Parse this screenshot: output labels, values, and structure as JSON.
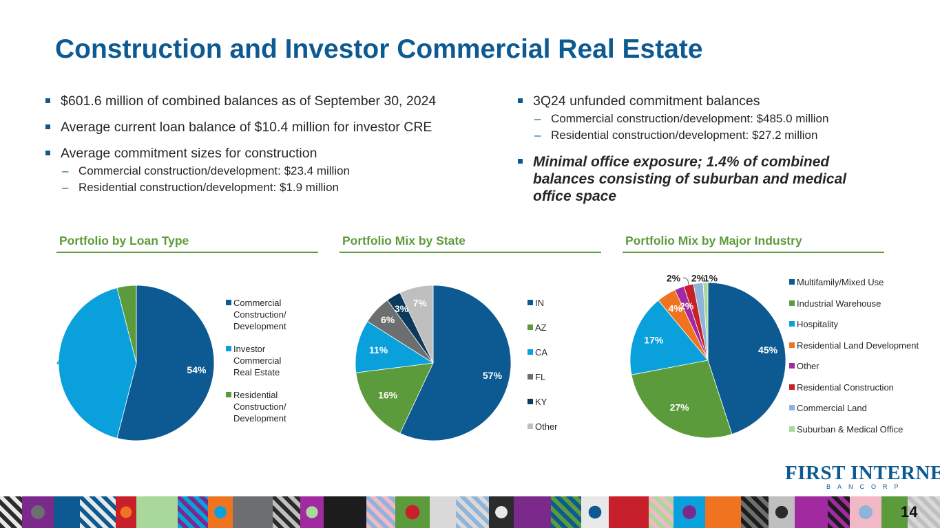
{
  "title": "Construction and Investor Commercial Real Estate",
  "left_bullets": {
    "b1": "$601.6 million of combined balances as of September 30, 2024",
    "b2": "Average current loan balance of $10.4 million for investor CRE",
    "b3": "Average commitment sizes for construction",
    "b3_subs": [
      "Commercial construction/development: $23.4 million",
      "Residential construction/development: $1.9 million"
    ]
  },
  "right_bullets": {
    "b1": "3Q24 unfunded commitment balances",
    "b1_subs": [
      "Commercial construction/development: $485.0 million",
      "Residential construction/development: $27.2 million"
    ],
    "b2": "Minimal office exposure; 1.4% of combined balances consisting of suburban and medical office space"
  },
  "sections": {
    "loan_type": "Portfolio by Loan Type",
    "state": "Portfolio Mix by State",
    "industry": "Portfolio Mix by Major Industry"
  },
  "chart_data": [
    {
      "type": "pie",
      "title": "Portfolio by Loan Type",
      "categories": [
        "Commercial Construction/ Development",
        "Investor Commercial Real Estate",
        "Residential Construction/ Development"
      ],
      "values": [
        54,
        42,
        4
      ],
      "labels": [
        "54%",
        "42%",
        "4%"
      ],
      "colors": [
        "#0d5a92",
        "#0aa0dc",
        "#5c9b3b"
      ],
      "label_colors": [
        "#ffffff",
        "#0aa0dc",
        "#5c9b3b"
      ],
      "legend_position": "right"
    },
    {
      "type": "pie",
      "title": "Portfolio Mix by State",
      "categories": [
        "IN",
        "AZ",
        "CA",
        "FL",
        "KY",
        "Other"
      ],
      "values": [
        57,
        16,
        11,
        6,
        3,
        7
      ],
      "labels": [
        "57%",
        "16%",
        "11%",
        "6%",
        "3%",
        "7%"
      ],
      "colors": [
        "#0d5a92",
        "#5c9b3b",
        "#0aa0dc",
        "#6d6e70",
        "#0b3a5c",
        "#bfbfbf"
      ],
      "label_colors": [
        "#ffffff",
        "#ffffff",
        "#ffffff",
        "#ffffff",
        "#ffffff",
        "#ffffff"
      ],
      "legend_position": "right"
    },
    {
      "type": "pie",
      "title": "Portfolio Mix by Major Industry",
      "categories": [
        "Multifamily/Mixed Use",
        "Industrial Warehouse",
        "Hospitality",
        "Residential Land Development",
        "Other",
        "Residential Construction",
        "Commercial Land",
        "Suburban & Medical Office"
      ],
      "values": [
        45,
        27,
        17,
        4,
        2,
        2,
        2,
        1
      ],
      "labels": [
        "45%",
        "27%",
        "17%",
        "4%",
        "2%",
        "2%",
        "2%",
        "1%"
      ],
      "colors": [
        "#0d5a92",
        "#5c9b3b",
        "#0aa0dc",
        "#f07320",
        "#a12aa0",
        "#c8202a",
        "#8fb4d9",
        "#a8d89a"
      ],
      "label_colors": [
        "#ffffff",
        "#ffffff",
        "#ffffff",
        "#ffffff",
        "#ffffff",
        "#262626",
        "#262626",
        "#262626"
      ],
      "legend_position": "right"
    }
  ],
  "logo": {
    "main": "FIRST INTERNET",
    "sub": "BANCORP"
  },
  "page_number": "14"
}
